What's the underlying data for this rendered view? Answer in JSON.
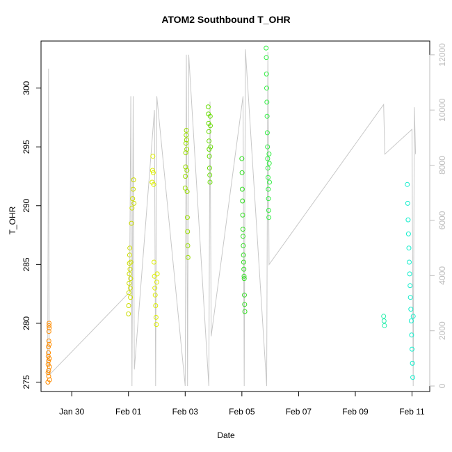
{
  "chart_data": {
    "type": "scatter",
    "title": "ATOM2 Southbound T_OHR",
    "xlabel": "Date",
    "ylabel": "T_OHR",
    "xlim": [
      "2016-01-28T22:00",
      "2016-02-11T15:00"
    ],
    "ylim": [
      274.2,
      304.0
    ],
    "y2lim": [
      -200,
      12500
    ],
    "x_ticks": [
      {
        "date": "2016-01-30",
        "label": "Jan 30"
      },
      {
        "date": "2016-02-01",
        "label": "Feb 01"
      },
      {
        "date": "2016-02-03",
        "label": "Feb 03"
      },
      {
        "date": "2016-02-05",
        "label": "Feb 05"
      },
      {
        "date": "2016-02-07",
        "label": "Feb 07"
      },
      {
        "date": "2016-02-09",
        "label": "Feb 09"
      },
      {
        "date": "2016-02-11",
        "label": "Feb 11"
      }
    ],
    "y_ticks": [
      275,
      280,
      285,
      290,
      295,
      300
    ],
    "y2_ticks": [
      0,
      2000,
      4000,
      6000,
      8000,
      10000,
      12000
    ],
    "grid": false,
    "legend": "none",
    "series": [
      {
        "color": "#ff8c00",
        "points": [
          [
            "2016-01-29T03:50",
            275.0
          ],
          [
            "2016-01-29T03:55",
            275.8
          ],
          [
            "2016-01-29T04:00",
            276.5
          ],
          [
            "2016-01-29T04:05",
            277.2
          ],
          [
            "2016-01-29T04:10",
            278.0
          ],
          [
            "2016-01-29T04:15",
            277.5
          ],
          [
            "2016-01-29T04:20",
            276.8
          ],
          [
            "2016-01-29T04:25",
            276.0
          ],
          [
            "2016-01-29T04:30",
            275.5
          ],
          [
            "2016-01-29T04:35",
            278.5
          ],
          [
            "2016-01-29T04:40",
            279.3
          ],
          [
            "2016-01-29T04:45",
            279.8
          ],
          [
            "2016-01-29T04:50",
            280.0
          ],
          [
            "2016-01-29T04:55",
            279.6
          ],
          [
            "2016-01-29T05:00",
            278.2
          ],
          [
            "2016-01-29T05:05",
            277.0
          ],
          [
            "2016-01-29T05:10",
            276.3
          ],
          [
            "2016-01-29T05:15",
            275.2
          ]
        ]
      },
      {
        "color": "#ccdd00",
        "points": [
          [
            "2016-02-01T00:00",
            280.8
          ],
          [
            "2016-02-01T00:10",
            281.5
          ],
          [
            "2016-02-01T00:20",
            282.6
          ],
          [
            "2016-02-01T00:30",
            283.4
          ],
          [
            "2016-02-01T00:40",
            284.2
          ],
          [
            "2016-02-01T00:50",
            285.1
          ],
          [
            "2016-02-01T01:00",
            285.8
          ],
          [
            "2016-02-01T01:10",
            286.4
          ],
          [
            "2016-02-01T01:20",
            284.6
          ],
          [
            "2016-02-01T01:30",
            283.0
          ],
          [
            "2016-02-01T01:40",
            282.2
          ],
          [
            "2016-02-01T01:50",
            283.8
          ],
          [
            "2016-02-01T02:00",
            285.2
          ],
          [
            "2016-02-01T02:30",
            288.5
          ],
          [
            "2016-02-01T03:00",
            289.8
          ],
          [
            "2016-02-01T03:30",
            290.6
          ],
          [
            "2016-02-01T04:00",
            291.4
          ],
          [
            "2016-02-01T04:20",
            292.2
          ],
          [
            "2016-02-01T04:40",
            290.2
          ]
        ]
      },
      {
        "color": "#ddee00",
        "points": [
          [
            "2016-02-01T20:00",
            292.0
          ],
          [
            "2016-02-01T20:20",
            293.0
          ],
          [
            "2016-02-01T20:40",
            294.2
          ],
          [
            "2016-02-01T21:00",
            292.8
          ],
          [
            "2016-02-01T21:20",
            291.8
          ],
          [
            "2016-02-01T21:40",
            285.2
          ],
          [
            "2016-02-01T22:00",
            284.0
          ],
          [
            "2016-02-01T22:20",
            283.0
          ],
          [
            "2016-02-01T22:40",
            282.4
          ],
          [
            "2016-02-01T23:00",
            281.5
          ],
          [
            "2016-02-01T23:20",
            280.5
          ],
          [
            "2016-02-01T23:40",
            279.9
          ],
          [
            "2016-02-02T00:00",
            283.5
          ],
          [
            "2016-02-02T00:20",
            284.2
          ]
        ]
      },
      {
        "color": "#99dd00",
        "points": [
          [
            "2016-02-03T00:00",
            291.5
          ],
          [
            "2016-02-03T00:10",
            292.5
          ],
          [
            "2016-02-03T00:20",
            293.3
          ],
          [
            "2016-02-03T00:30",
            294.5
          ],
          [
            "2016-02-03T00:40",
            295.3
          ],
          [
            "2016-02-03T00:50",
            296.0
          ],
          [
            "2016-02-03T01:00",
            296.4
          ],
          [
            "2016-02-03T01:10",
            295.6
          ],
          [
            "2016-02-03T01:20",
            294.8
          ],
          [
            "2016-02-03T01:30",
            293.0
          ],
          [
            "2016-02-03T01:40",
            291.2
          ],
          [
            "2016-02-03T01:50",
            289.0
          ],
          [
            "2016-02-03T02:00",
            287.8
          ],
          [
            "2016-02-03T02:10",
            286.6
          ],
          [
            "2016-02-03T02:20",
            285.6
          ]
        ]
      },
      {
        "color": "#66dd00",
        "points": [
          [
            "2016-02-03T19:30",
            298.4
          ],
          [
            "2016-02-03T19:40",
            297.8
          ],
          [
            "2016-02-03T19:50",
            297.0
          ],
          [
            "2016-02-03T20:00",
            296.3
          ],
          [
            "2016-02-03T20:10",
            295.5
          ],
          [
            "2016-02-03T20:20",
            294.8
          ],
          [
            "2016-02-03T20:30",
            294.2
          ],
          [
            "2016-02-03T20:40",
            293.2
          ],
          [
            "2016-02-03T20:50",
            292.6
          ],
          [
            "2016-02-03T21:00",
            292.0
          ],
          [
            "2016-02-03T21:10",
            297.6
          ],
          [
            "2016-02-03T21:20",
            296.8
          ],
          [
            "2016-02-03T21:30",
            295.0
          ]
        ]
      },
      {
        "color": "#33dd22",
        "points": [
          [
            "2016-02-05T00:00",
            294.0
          ],
          [
            "2016-02-05T00:10",
            292.8
          ],
          [
            "2016-02-05T00:20",
            291.4
          ],
          [
            "2016-02-05T00:30",
            290.4
          ],
          [
            "2016-02-05T00:40",
            289.2
          ],
          [
            "2016-02-05T00:50",
            288.0
          ],
          [
            "2016-02-05T01:00",
            287.4
          ],
          [
            "2016-02-05T01:10",
            286.6
          ],
          [
            "2016-02-05T01:20",
            285.8
          ],
          [
            "2016-02-05T01:30",
            285.2
          ],
          [
            "2016-02-05T01:40",
            284.6
          ],
          [
            "2016-02-05T01:50",
            284.0
          ],
          [
            "2016-02-05T02:00",
            283.8
          ],
          [
            "2016-02-05T02:10",
            282.4
          ],
          [
            "2016-02-05T02:20",
            281.6
          ],
          [
            "2016-02-05T02:30",
            281.0
          ]
        ]
      },
      {
        "color": "#33ee44",
        "points": [
          [
            "2016-02-05T20:30",
            303.4
          ],
          [
            "2016-02-05T20:40",
            302.6
          ],
          [
            "2016-02-05T20:50",
            301.2
          ],
          [
            "2016-02-05T21:00",
            300.0
          ],
          [
            "2016-02-05T21:10",
            298.8
          ],
          [
            "2016-02-05T21:20",
            297.6
          ],
          [
            "2016-02-05T21:30",
            296.2
          ],
          [
            "2016-02-05T21:40",
            295.0
          ],
          [
            "2016-02-05T21:50",
            294.0
          ],
          [
            "2016-02-05T22:00",
            293.2
          ],
          [
            "2016-02-05T22:10",
            292.4
          ],
          [
            "2016-02-05T22:20",
            291.4
          ],
          [
            "2016-02-05T22:30",
            290.6
          ],
          [
            "2016-02-05T22:40",
            289.6
          ],
          [
            "2016-02-05T22:50",
            289.0
          ],
          [
            "2016-02-05T23:00",
            294.4
          ],
          [
            "2016-02-05T23:10",
            293.6
          ],
          [
            "2016-02-05T23:20",
            292.0
          ]
        ]
      },
      {
        "color": "#22eeaa",
        "points": [
          [
            "2016-02-10T00:00",
            280.6
          ],
          [
            "2016-02-10T00:20",
            280.2
          ],
          [
            "2016-02-10T00:40",
            279.8
          ]
        ]
      },
      {
        "color": "#11eecc",
        "points": [
          [
            "2016-02-10T20:00",
            291.8
          ],
          [
            "2016-02-10T20:20",
            290.2
          ],
          [
            "2016-02-10T20:40",
            288.8
          ],
          [
            "2016-02-10T21:00",
            287.6
          ],
          [
            "2016-02-10T21:20",
            286.4
          ],
          [
            "2016-02-10T21:40",
            285.2
          ],
          [
            "2016-02-10T22:00",
            284.2
          ],
          [
            "2016-02-10T22:20",
            283.2
          ],
          [
            "2016-02-10T22:40",
            282.2
          ],
          [
            "2016-02-10T23:00",
            281.2
          ],
          [
            "2016-02-10T23:20",
            280.2
          ],
          [
            "2016-02-10T23:40",
            279.0
          ],
          [
            "2016-02-11T00:00",
            277.8
          ],
          [
            "2016-02-11T00:20",
            276.6
          ],
          [
            "2016-02-11T00:40",
            275.4
          ],
          [
            "2016-02-11T01:00",
            280.6
          ]
        ]
      }
    ],
    "secondary_line": {
      "color": "#c8c8c8",
      "axis": "right",
      "points": [
        [
          "2016-01-29T03:40",
          400
        ],
        [
          "2016-01-29T04:20",
          11500
        ],
        [
          "2016-01-29T05:00",
          400
        ],
        [
          "2016-02-01T01:00",
          3400
        ],
        [
          "2016-02-01T02:00",
          10500
        ],
        [
          "2016-02-01T03:00",
          0
        ],
        [
          "2016-02-01T04:00",
          10500
        ],
        [
          "2016-02-01T05:00",
          600
        ],
        [
          "2016-02-01T22:00",
          10000
        ],
        [
          "2016-02-01T23:00",
          0
        ],
        [
          "2016-02-02T00:00",
          10500
        ],
        [
          "2016-02-03T00:00",
          0
        ],
        [
          "2016-02-03T01:00",
          12000
        ],
        [
          "2016-02-03T02:00",
          0
        ],
        [
          "2016-02-03T03:00",
          12000
        ],
        [
          "2016-02-03T20:00",
          0
        ],
        [
          "2016-02-03T21:00",
          10300
        ],
        [
          "2016-02-03T22:00",
          1800
        ],
        [
          "2016-02-05T01:00",
          10500
        ],
        [
          "2016-02-05T02:00",
          0
        ],
        [
          "2016-02-05T03:00",
          12200
        ],
        [
          "2016-02-05T21:00",
          0
        ],
        [
          "2016-02-05T22:00",
          12100
        ],
        [
          "2016-02-05T23:00",
          4400
        ],
        [
          "2016-02-10T00:00",
          10200
        ],
        [
          "2016-02-10T01:00",
          8400
        ],
        [
          "2016-02-11T00:00",
          9300
        ],
        [
          "2016-02-11T01:00",
          0
        ],
        [
          "2016-02-11T02:00",
          10100
        ],
        [
          "2016-02-11T03:00",
          8400
        ]
      ]
    }
  }
}
